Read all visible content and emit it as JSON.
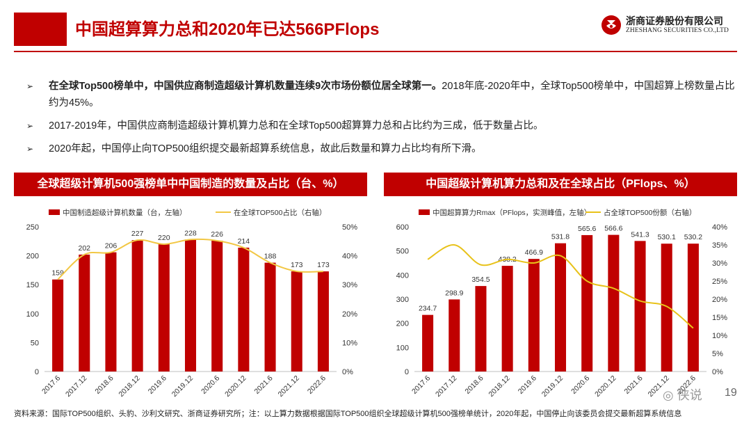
{
  "header": {
    "title": "中国超算算力总和2020年已达566PFlops",
    "logo_cn": "浙商证券股份有限公司",
    "logo_en": "ZHESHANG SECURITIES CO.,LTD"
  },
  "bullets": [
    {
      "bold": "在全球Top500榜单中，中国供应商制造超级计算机数量连续9次市场份额位居全球第一。",
      "text": "2018年底-2020年中，全球Top500榜单中，中国超算上榜数量占比约为45%。"
    },
    {
      "bold": "",
      "text": "2017-2019年，中国供应商制造超级计算机算力总和在全球Top500超算算力总和占比约为三成，低于数量占比。"
    },
    {
      "bold": "",
      "text": "2020年起，中国停止向TOP500组织提交最新超算系统信息，故此后数量和算力占比均有所下滑。"
    }
  ],
  "panels": {
    "left_title": "全球超级计算机500强榜单中中国制造的数量及占比（台、%）",
    "right_title": "中国超级计算机算力总和及在全球占比（PFlops、%）"
  },
  "chart_data": [
    {
      "type": "bar",
      "categories": [
        "2017.6",
        "2017.12",
        "2018.6",
        "2018.12",
        "2019.6",
        "2019.12",
        "2020.6",
        "2020.12",
        "2021.6",
        "2021.12",
        "2022.6"
      ],
      "series": [
        {
          "name": "中国制造超级计算机数量（台，左轴）",
          "type": "bar",
          "axis": "left",
          "color": "#c00000",
          "values": [
            159,
            202,
            206,
            227,
            220,
            228,
            226,
            214,
            188,
            173,
            173
          ]
        },
        {
          "name": "在全球TOP500占比（右轴）",
          "type": "line",
          "axis": "right",
          "color": "#f2c744",
          "values": [
            31.8,
            40.4,
            41.2,
            45.4,
            44.0,
            45.6,
            45.2,
            42.8,
            37.6,
            34.6,
            34.6
          ]
        }
      ],
      "ylim_left": [
        0,
        250
      ],
      "yticks_left": [
        "0",
        "50",
        "100",
        "150",
        "200",
        "250"
      ],
      "ylim_right": [
        0,
        50
      ],
      "yticks_right": [
        "0%",
        "10%",
        "20%",
        "30%",
        "40%",
        "50%"
      ],
      "legend": "top",
      "grid": false
    },
    {
      "type": "bar",
      "categories": [
        "2017.6",
        "2017.12",
        "2018.6",
        "2018.12",
        "2019.6",
        "2019.12",
        "2020.6",
        "2020.12",
        "2021.6",
        "2021.12",
        "2022.6"
      ],
      "series": [
        {
          "name": "中国超算算力Rmax（PFlops，实测峰值，左轴）",
          "type": "bar",
          "axis": "left",
          "color": "#c00000",
          "values": [
            234.7,
            298.9,
            354.5,
            438.2,
            466.9,
            531.8,
            565.6,
            566.6,
            541.3,
            530.1,
            530.2
          ]
        },
        {
          "name": "占全球TOP500份额（右轴）",
          "type": "line",
          "axis": "right",
          "color": "#e8c21a",
          "values": [
            31.0,
            35.0,
            29.5,
            31.0,
            30.0,
            32.0,
            25.0,
            23.0,
            19.5,
            18.0,
            12.0
          ]
        }
      ],
      "ylim_left": [
        0,
        600
      ],
      "yticks_left": [
        "0",
        "100",
        "200",
        "300",
        "400",
        "500",
        "600"
      ],
      "ylim_right": [
        0,
        40
      ],
      "yticks_right": [
        "0%",
        "5%",
        "10%",
        "15%",
        "20%",
        "25%",
        "30%",
        "35%",
        "40%"
      ],
      "legend": "top",
      "grid": false
    }
  ],
  "footer": {
    "source": "资料来源：国际TOP500组织、头豹、沙利文研究、浙商证券研究所；注：以上算力数据根据国际TOP500组织全球超级计算机500强榜单统计，2020年起，中国停止向该委员会提交最新超算系统信息",
    "watermark": "侠说",
    "page": "19"
  }
}
